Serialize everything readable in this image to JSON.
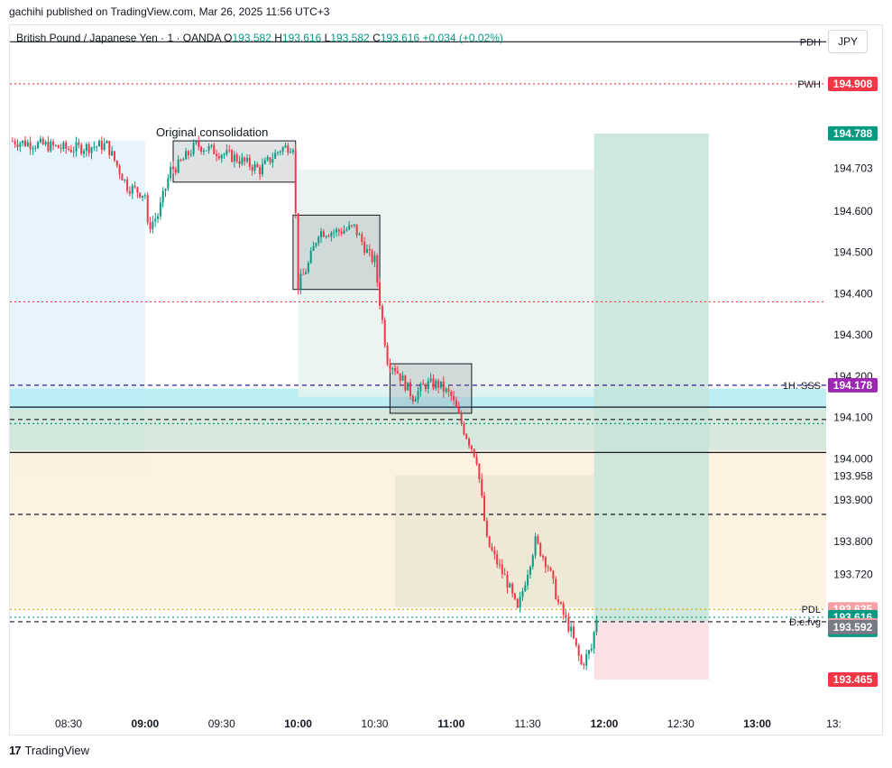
{
  "header": {
    "publisher": "gachihi published on TradingView.com, Mar 26, 2025 11:56 UTC+3"
  },
  "legend": {
    "symbol": "British Pound / Japanese Yen · 1 · OANDA",
    "O_label": "O",
    "O": "193.582",
    "H_label": "H",
    "H": "193.616",
    "L_label": "L",
    "L": "193.582",
    "C_label": "C",
    "C": "193.616",
    "change": "+0.034 (+0.02%)"
  },
  "currency_button": "JPY",
  "footer": {
    "logo": "17",
    "brand": "TradingView"
  },
  "colors": {
    "up": "#089981",
    "down": "#f23645",
    "purple": "#9c27b0",
    "grey_badge": "#787b86",
    "pink_badge": "#f7a1a7"
  },
  "chart_data": {
    "type": "candlestick",
    "ylim": [
      193.395,
      195.05
    ],
    "x_range": [
      "08:07",
      "13:27"
    ],
    "grid": false,
    "y_ticks": [
      "194.791",
      "194.703",
      "194.600",
      "194.500",
      "194.400",
      "194.300",
      "194.200",
      "194.100",
      "194.000",
      "193.958",
      "193.900",
      "193.800",
      "193.720",
      "193.470"
    ],
    "y_tick_values": [
      194.791,
      194.703,
      194.6,
      194.5,
      194.4,
      194.3,
      194.2,
      194.1,
      194.0,
      193.958,
      193.9,
      193.8,
      193.72,
      193.47
    ],
    "x_ticks": [
      {
        "t": "08:30",
        "label": "08:30",
        "bold": false
      },
      {
        "t": "09:00",
        "label": "09:00",
        "bold": true
      },
      {
        "t": "09:30",
        "label": "09:30",
        "bold": false
      },
      {
        "t": "10:00",
        "label": "10:00",
        "bold": true
      },
      {
        "t": "10:30",
        "label": "10:30",
        "bold": false
      },
      {
        "t": "11:00",
        "label": "11:00",
        "bold": true
      },
      {
        "t": "11:30",
        "label": "11:30",
        "bold": false
      },
      {
        "t": "12:00",
        "label": "12:00",
        "bold": true
      },
      {
        "t": "12:30",
        "label": "12:30",
        "bold": false
      },
      {
        "t": "13:00",
        "label": "13:00",
        "bold": true
      },
      {
        "t": "13:30",
        "label": "13:",
        "bold": false
      }
    ],
    "price_path": [
      [
        "08:07",
        194.77
      ],
      [
        "08:20",
        194.76
      ],
      [
        "08:30",
        194.75
      ],
      [
        "08:45",
        194.76
      ],
      [
        "08:53",
        194.66
      ],
      [
        "09:00",
        194.64
      ],
      [
        "09:01",
        194.56
      ],
      [
        "09:05",
        194.59
      ],
      [
        "09:10",
        194.7
      ],
      [
        "09:13",
        194.71
      ],
      [
        "09:20",
        194.76
      ],
      [
        "09:35",
        194.73
      ],
      [
        "09:45",
        194.7
      ],
      [
        "09:53",
        194.75
      ],
      [
        "09:58",
        194.76
      ],
      [
        "10:00",
        194.42
      ],
      [
        "10:04",
        194.47
      ],
      [
        "10:08",
        194.55
      ],
      [
        "10:15",
        194.55
      ],
      [
        "10:22",
        194.56
      ],
      [
        "10:28",
        194.49
      ],
      [
        "10:30",
        194.48
      ],
      [
        "10:32",
        194.38
      ],
      [
        "10:35",
        194.24
      ],
      [
        "10:38",
        194.22
      ],
      [
        "10:45",
        194.15
      ],
      [
        "10:50",
        194.18
      ],
      [
        "10:55",
        194.18
      ],
      [
        "11:00",
        194.15
      ],
      [
        "11:05",
        194.07
      ],
      [
        "11:10",
        194.0
      ],
      [
        "11:12",
        193.9
      ],
      [
        "11:14",
        193.8
      ],
      [
        "11:17",
        193.76
      ],
      [
        "11:22",
        193.7
      ],
      [
        "11:26",
        193.63
      ],
      [
        "11:30",
        193.73
      ],
      [
        "11:33",
        193.8
      ],
      [
        "11:38",
        193.74
      ],
      [
        "11:42",
        193.65
      ],
      [
        "11:47",
        193.58
      ],
      [
        "11:51",
        193.5
      ],
      [
        "11:55",
        193.54
      ],
      [
        "11:57",
        193.616
      ]
    ],
    "annotations": {
      "consolidation_label": "Original consolidation",
      "boxes": [
        {
          "t1": "09:11",
          "t2": "09:59",
          "y1": 194.77,
          "y2": 194.67
        },
        {
          "t1": "09:58",
          "t2": "10:32",
          "y1": 194.59,
          "y2": 194.41
        },
        {
          "t1": "10:36",
          "t2": "11:08",
          "y1": 194.23,
          "y2": 194.11
        }
      ],
      "zones": [
        {
          "t1": "08:07",
          "t2": "09:00",
          "y1": 194.77,
          "y2": 193.96,
          "color": "#e3f2fd"
        },
        {
          "t1": "08:07",
          "t2": "13:27",
          "y1": 194.17,
          "y2": 194.12,
          "color": "#b2ebf2"
        },
        {
          "t1": "08:07",
          "t2": "13:27",
          "y1": 194.12,
          "y2": 194.02,
          "color": "#cfe5d6"
        },
        {
          "t1": "08:07",
          "t2": "13:27",
          "y1": 194.02,
          "y2": 193.64,
          "color": "#fdf0dc"
        },
        {
          "t1": "10:00",
          "t2": "11:56",
          "y1": 194.7,
          "y2": 194.15,
          "color": "#e6f3ef"
        },
        {
          "t1": "10:38",
          "t2": "11:56",
          "y1": 193.96,
          "y2": 193.64,
          "color": "#ece6d3"
        },
        {
          "t1": "11:56",
          "t2": "12:41",
          "y1": 194.788,
          "y2": 193.606,
          "color": "#c7e4d9"
        },
        {
          "t1": "11:56",
          "t2": "12:41",
          "y1": 193.606,
          "y2": 193.465,
          "color": "#fcdce0"
        }
      ],
      "levels": [
        {
          "label": "PDH",
          "value": 195.01,
          "style": "solid",
          "color": "#131722",
          "badge": "",
          "badge_color": ""
        },
        {
          "label": "PWH",
          "value": 194.908,
          "style": "dotted",
          "color": "#f23645",
          "badge": "194.908",
          "badge_color": "#f23645"
        },
        {
          "label": "",
          "value": 194.788,
          "style": "none",
          "color": "",
          "badge": "194.788",
          "badge_color": "#089981"
        },
        {
          "label": "",
          "value": 194.38,
          "style": "dotted",
          "color": "#f23645",
          "badge": "",
          "badge_color": ""
        },
        {
          "label": "1H. SSS",
          "value": 194.178,
          "style": "dashed",
          "color": "#311b92",
          "badge": "194.178",
          "badge_color": "#9c27b0"
        },
        {
          "label": "",
          "value": 194.125,
          "style": "solid",
          "color": "#131722",
          "badge": "",
          "badge_color": ""
        },
        {
          "label": "",
          "value": 194.095,
          "style": "dashed",
          "color": "#131722",
          "badge": "",
          "badge_color": ""
        },
        {
          "label": "",
          "value": 194.085,
          "style": "dotted",
          "color": "#089981",
          "badge": "",
          "badge_color": ""
        },
        {
          "label": "",
          "value": 194.015,
          "style": "solid",
          "color": "#131722",
          "badge": "",
          "badge_color": ""
        },
        {
          "label": "",
          "value": 193.865,
          "style": "dashed",
          "color": "#131722",
          "badge": "",
          "badge_color": ""
        },
        {
          "label": "PDL",
          "value": 193.635,
          "style": "dotted",
          "color": "#e0a800",
          "badge": "193.635",
          "badge_color": "#f7a1a7"
        },
        {
          "label": "",
          "value": 193.616,
          "style": "dotted",
          "color": "#089981",
          "badge": "193.616",
          "badge_color": "#089981",
          "sub": "00:12"
        },
        {
          "label": "D.e.fvg",
          "value": 193.605,
          "style": "dashed",
          "color": "#131722",
          "badge": "",
          "badge_color": ""
        },
        {
          "label": "",
          "value": 193.596,
          "style": "none",
          "color": "",
          "badge": "193.596",
          "badge_color": "#f7a1a7"
        },
        {
          "label": "",
          "value": 193.592,
          "style": "none",
          "color": "",
          "badge": "193.592",
          "badge_color": "#787b86"
        },
        {
          "label": "",
          "value": 193.465,
          "style": "none",
          "color": "",
          "badge": "193.465",
          "badge_color": "#f23645"
        }
      ]
    }
  }
}
